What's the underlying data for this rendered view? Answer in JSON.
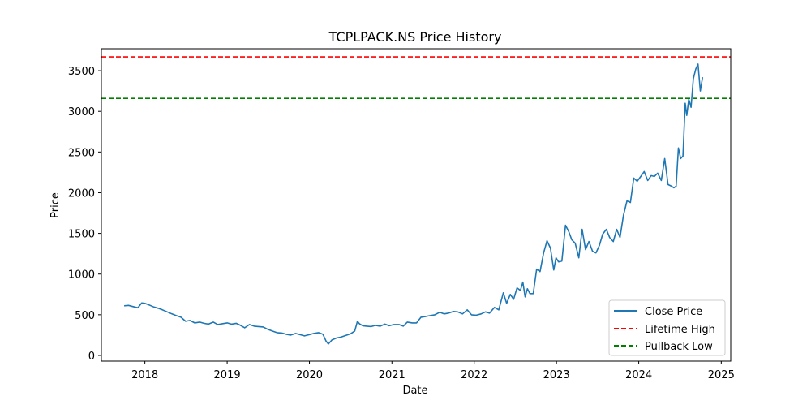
{
  "chart_data": {
    "type": "line",
    "title": "TCPLPACK.NS Price History",
    "xlabel": "Date",
    "ylabel": "Price",
    "xlim": [
      "2017-06-22",
      "2025-02-12"
    ],
    "ylim": [
      -70,
      3770
    ],
    "x_ticks": [
      {
        "value": "2018-01-01",
        "label": "2018"
      },
      {
        "value": "2019-01-01",
        "label": "2019"
      },
      {
        "value": "2020-01-01",
        "label": "2020"
      },
      {
        "value": "2021-01-01",
        "label": "2021"
      },
      {
        "value": "2022-01-01",
        "label": "2022"
      },
      {
        "value": "2023-01-01",
        "label": "2023"
      },
      {
        "value": "2024-01-01",
        "label": "2024"
      },
      {
        "value": "2025-01-01",
        "label": "2025"
      }
    ],
    "y_ticks": [
      0,
      500,
      1000,
      1500,
      2000,
      2500,
      3000,
      3500
    ],
    "grid": false,
    "legend_position": "lower-right",
    "series": [
      {
        "name": "Close Price",
        "color": "#1f77b4",
        "x": [
          "2017-10-01",
          "2017-10-20",
          "2017-11-10",
          "2017-12-01",
          "2017-12-18",
          "2018-01-01",
          "2018-01-20",
          "2018-02-10",
          "2018-03-01",
          "2018-03-20",
          "2018-04-10",
          "2018-05-01",
          "2018-05-20",
          "2018-06-10",
          "2018-07-01",
          "2018-07-20",
          "2018-08-10",
          "2018-09-01",
          "2018-09-20",
          "2018-10-10",
          "2018-11-01",
          "2018-11-20",
          "2018-12-10",
          "2019-01-01",
          "2019-01-20",
          "2019-02-10",
          "2019-03-01",
          "2019-03-20",
          "2019-04-10",
          "2019-05-01",
          "2019-05-20",
          "2019-06-10",
          "2019-07-01",
          "2019-07-20",
          "2019-08-10",
          "2019-09-01",
          "2019-09-20",
          "2019-10-10",
          "2019-11-01",
          "2019-11-20",
          "2019-12-10",
          "2020-01-01",
          "2020-01-20",
          "2020-02-10",
          "2020-03-01",
          "2020-03-15",
          "2020-03-25",
          "2020-04-10",
          "2020-05-01",
          "2020-05-20",
          "2020-06-10",
          "2020-07-01",
          "2020-07-20",
          "2020-08-01",
          "2020-08-10",
          "2020-08-25",
          "2020-09-10",
          "2020-10-01",
          "2020-10-20",
          "2020-11-10",
          "2020-12-01",
          "2020-12-20",
          "2021-01-10",
          "2021-02-01",
          "2021-02-20",
          "2021-03-10",
          "2021-04-01",
          "2021-04-20",
          "2021-05-10",
          "2021-06-01",
          "2021-06-20",
          "2021-07-10",
          "2021-08-01",
          "2021-08-20",
          "2021-09-10",
          "2021-10-01",
          "2021-10-20",
          "2021-11-10",
          "2021-12-01",
          "2021-12-20",
          "2022-01-10",
          "2022-02-01",
          "2022-02-20",
          "2022-03-10",
          "2022-04-01",
          "2022-04-20",
          "2022-05-10",
          "2022-05-25",
          "2022-06-10",
          "2022-06-25",
          "2022-07-10",
          "2022-07-25",
          "2022-08-05",
          "2022-08-15",
          "2022-08-25",
          "2022-09-05",
          "2022-09-20",
          "2022-10-05",
          "2022-10-20",
          "2022-11-05",
          "2022-11-20",
          "2022-12-05",
          "2022-12-20",
          "2022-12-30",
          "2023-01-10",
          "2023-01-25",
          "2023-02-10",
          "2023-02-25",
          "2023-03-10",
          "2023-03-25",
          "2023-04-10",
          "2023-04-25",
          "2023-05-10",
          "2023-05-25",
          "2023-06-10",
          "2023-06-25",
          "2023-07-10",
          "2023-07-25",
          "2023-08-10",
          "2023-08-25",
          "2023-09-10",
          "2023-09-25",
          "2023-10-10",
          "2023-10-25",
          "2023-11-10",
          "2023-11-25",
          "2023-12-10",
          "2023-12-25",
          "2024-01-10",
          "2024-01-25",
          "2024-02-10",
          "2024-02-25",
          "2024-03-10",
          "2024-03-25",
          "2024-04-10",
          "2024-04-25",
          "2024-05-10",
          "2024-05-25",
          "2024-06-05",
          "2024-06-15",
          "2024-06-25",
          "2024-07-05",
          "2024-07-15",
          "2024-07-25",
          "2024-08-01",
          "2024-08-10",
          "2024-08-20",
          "2024-08-30",
          "2024-09-10",
          "2024-09-20",
          "2024-09-30",
          "2024-10-10"
        ],
        "y": [
          610,
          615,
          600,
          585,
          645,
          640,
          620,
          595,
          580,
          560,
          535,
          510,
          490,
          470,
          420,
          430,
          400,
          410,
          395,
          385,
          410,
          380,
          390,
          400,
          385,
          395,
          370,
          340,
          380,
          360,
          355,
          350,
          320,
          300,
          280,
          275,
          260,
          250,
          270,
          255,
          240,
          255,
          270,
          280,
          260,
          175,
          140,
          190,
          215,
          225,
          245,
          265,
          300,
          420,
          390,
          365,
          360,
          355,
          370,
          360,
          385,
          365,
          380,
          380,
          360,
          410,
          400,
          400,
          470,
          480,
          490,
          500,
          530,
          510,
          520,
          540,
          535,
          510,
          560,
          500,
          495,
          510,
          535,
          520,
          590,
          560,
          770,
          640,
          750,
          690,
          830,
          800,
          900,
          720,
          820,
          760,
          760,
          1060,
          1030,
          1260,
          1410,
          1320,
          1050,
          1200,
          1150,
          1160,
          1600,
          1520,
          1420,
          1380,
          1200,
          1550,
          1300,
          1400,
          1280,
          1260,
          1350,
          1490,
          1550,
          1450,
          1400,
          1550,
          1450,
          1720,
          1900,
          1880,
          2180,
          2140,
          2200,
          2260,
          2150,
          2210,
          2200,
          2240,
          2150,
          2420,
          2100,
          2080,
          2060,
          2080,
          2550,
          2420,
          2450,
          3100,
          2950,
          3150,
          3050,
          3400,
          3520,
          3580,
          3250,
          3420
        ]
      },
      {
        "name": "Lifetime High",
        "color": "#ff0000",
        "style": "dashed",
        "value": 3670
      },
      {
        "name": "Pullback Low",
        "color": "#008000",
        "style": "dashed",
        "value": 3160
      }
    ]
  }
}
